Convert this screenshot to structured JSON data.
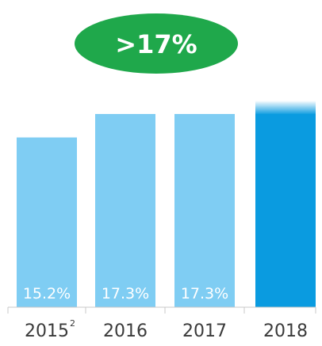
{
  "badge": {
    "text": ">17%",
    "color": "#1fa84b",
    "text_color": "#ffffff"
  },
  "colors": {
    "bar_light": "#7fcdf3",
    "bar_highlight": "#0a9be0",
    "axis": "#c8c8c8",
    "tick_text": "#3a3a3a"
  },
  "chart_data": {
    "type": "bar",
    "categories": [
      "2015",
      "2016",
      "2017",
      "2018"
    ],
    "category_superscripts": [
      "2",
      "",
      "",
      ""
    ],
    "values": [
      15.2,
      17.3,
      17.3,
      null
    ],
    "value_labels": [
      "15.2%",
      "17.3%",
      "17.3%",
      ""
    ],
    "highlight_index": 3,
    "highlight_note": "2018 bar drawn in dark blue with a faded top (target above 17%)",
    "title": "",
    "xlabel": "",
    "ylabel": "",
    "ylim": [
      0,
      19
    ],
    "grid": false,
    "legend": "none"
  }
}
